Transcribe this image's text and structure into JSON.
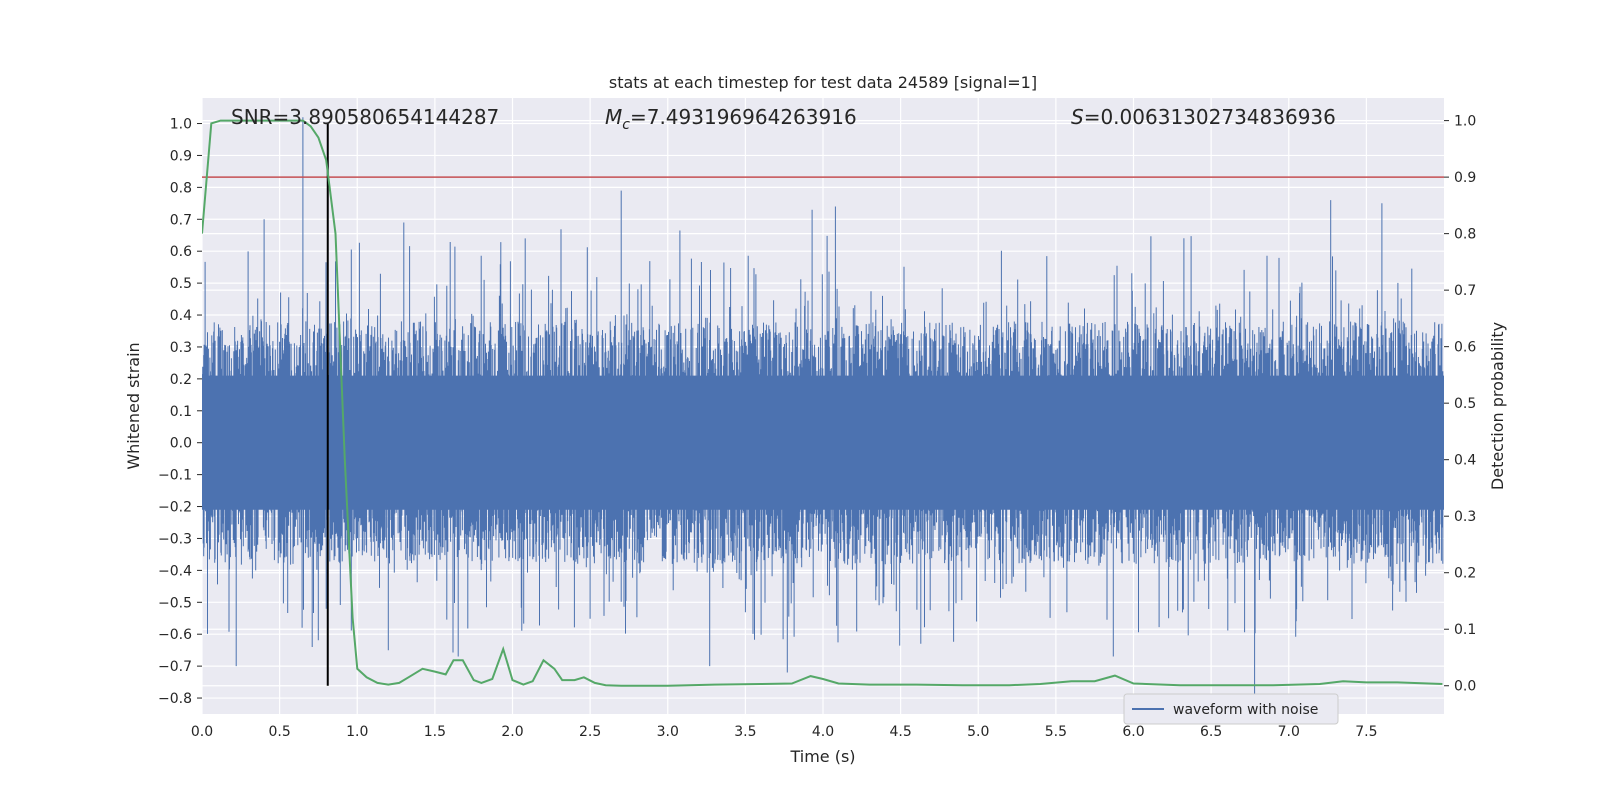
{
  "chart_data": {
    "type": "line",
    "title": "stats at each timestep for test data 24589 [signal=1]",
    "xlabel": "Time (s)",
    "ylabel": "Whitened strain",
    "y2label": "Detection probability",
    "xlim": [
      0.0,
      8.0
    ],
    "ylim": [
      -0.85,
      1.08
    ],
    "y2lim": [
      -0.05,
      1.04
    ],
    "xticks": [
      "0.0",
      "0.5",
      "1.0",
      "1.5",
      "2.0",
      "2.5",
      "3.0",
      "3.5",
      "4.0",
      "4.5",
      "5.0",
      "5.5",
      "6.0",
      "6.5",
      "7.0",
      "7.5"
    ],
    "yticks": [
      "1.0",
      "0.9",
      "0.8",
      "0.7",
      "0.6",
      "0.5",
      "0.4",
      "0.3",
      "0.2",
      "0.1",
      "0.0",
      "−0.1",
      "−0.2",
      "−0.3",
      "−0.4",
      "−0.5",
      "−0.6",
      "−0.7",
      "−0.8"
    ],
    "y2ticks": [
      "1.0",
      "0.9",
      "0.8",
      "0.7",
      "0.6",
      "0.5",
      "0.4",
      "0.3",
      "0.2",
      "0.1",
      "0.0"
    ],
    "grid": true,
    "legend_placement": "lower-right",
    "annotations": {
      "snr": "SNR=3.890580654144287",
      "mc_symbol": "M",
      "mc_sub": "c",
      "mc_value": "=7.493196964263916",
      "s_symbol": "S",
      "s_value": "=0.00631302734836936"
    },
    "marker_time": 0.81,
    "threshold_probability": 0.9,
    "waveform": {
      "name": "waveform with noise",
      "color": "#4c72b0",
      "envelope_typical": 0.28,
      "spikes": [
        {
          "t": 0.22,
          "v": -0.7
        },
        {
          "t": 0.4,
          "v": 0.7
        },
        {
          "t": 0.65,
          "v": 1.02
        },
        {
          "t": 0.71,
          "v": -0.64
        },
        {
          "t": 0.8,
          "v": -0.52
        },
        {
          "t": 1.2,
          "v": -0.65
        },
        {
          "t": 1.3,
          "v": 0.69
        },
        {
          "t": 1.65,
          "v": -0.67
        },
        {
          "t": 2.7,
          "v": 0.79
        },
        {
          "t": 3.27,
          "v": -0.7
        },
        {
          "t": 3.77,
          "v": -0.72
        },
        {
          "t": 3.93,
          "v": 0.73
        },
        {
          "t": 4.08,
          "v": 0.74
        },
        {
          "t": 4.63,
          "v": -0.63
        },
        {
          "t": 6.78,
          "v": -0.8
        },
        {
          "t": 7.27,
          "v": 0.76
        },
        {
          "t": 7.6,
          "v": 0.75
        },
        {
          "t": 5.87,
          "v": -0.67
        }
      ]
    },
    "probability": {
      "color": "#55a868",
      "t": [
        0.0,
        0.06,
        0.12,
        0.2,
        0.3,
        0.4,
        0.5,
        0.6,
        0.65,
        0.7,
        0.75,
        0.8,
        0.86,
        0.92,
        0.97,
        1.0,
        1.06,
        1.13,
        1.2,
        1.27,
        1.33,
        1.42,
        1.5,
        1.57,
        1.62,
        1.68,
        1.75,
        1.8,
        1.87,
        1.94,
        2.0,
        2.07,
        2.13,
        2.2,
        2.27,
        2.32,
        2.4,
        2.46,
        2.53,
        2.6,
        2.7,
        3.0,
        3.3,
        3.6,
        3.8,
        3.92,
        4.0,
        4.1,
        4.3,
        4.6,
        4.9,
        5.2,
        5.4,
        5.6,
        5.75,
        5.88,
        6.0,
        6.3,
        6.6,
        6.9,
        7.2,
        7.35,
        7.5,
        7.7,
        7.99
      ],
      "p": [
        0.8,
        0.995,
        1.0,
        1.0,
        1.0,
        1.0,
        1.0,
        1.0,
        1.0,
        0.99,
        0.97,
        0.93,
        0.8,
        0.4,
        0.12,
        0.03,
        0.015,
        0.005,
        0.002,
        0.005,
        0.015,
        0.03,
        0.025,
        0.02,
        0.045,
        0.045,
        0.01,
        0.005,
        0.012,
        0.065,
        0.01,
        0.002,
        0.008,
        0.045,
        0.03,
        0.01,
        0.01,
        0.015,
        0.005,
        0.001,
        0.0,
        0.0,
        0.002,
        0.003,
        0.004,
        0.017,
        0.012,
        0.004,
        0.002,
        0.002,
        0.001,
        0.001,
        0.003,
        0.008,
        0.008,
        0.018,
        0.004,
        0.001,
        0.001,
        0.001,
        0.003,
        0.008,
        0.006,
        0.006,
        0.003
      ]
    }
  }
}
